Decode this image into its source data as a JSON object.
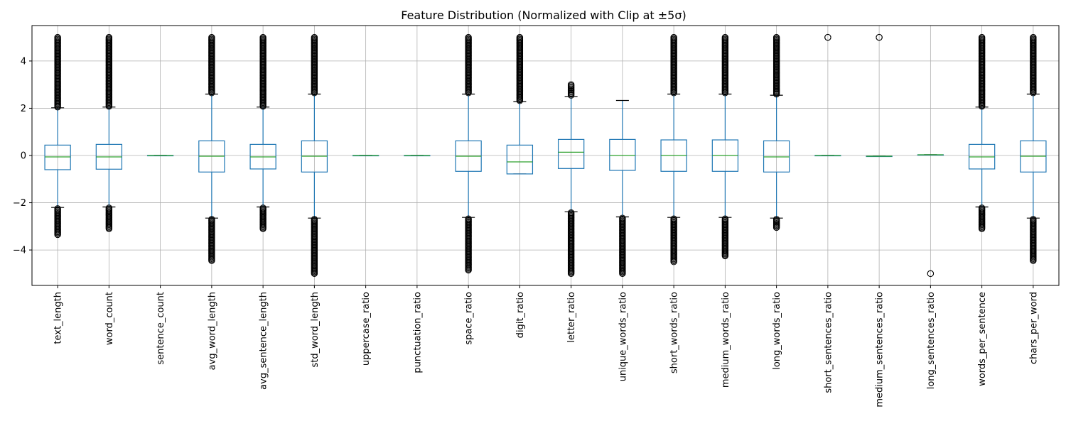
{
  "chart_data": {
    "type": "boxplot",
    "title": "Feature Distribution (Normalized with Clip at ±5σ)",
    "xlabel": "",
    "ylabel": "",
    "ylim": [
      -5.5,
      5.5
    ],
    "yticks": [
      -4,
      -2,
      0,
      2,
      4
    ],
    "grid": true,
    "colors": {
      "box": "#1f77b4",
      "median": "#2ca02c",
      "whisker": "#1f77b4",
      "cap": "#000000",
      "flier": "#000000",
      "grid": "#b0b0b0"
    },
    "categories": [
      "text_length",
      "word_count",
      "sentence_count",
      "avg_word_length",
      "avg_sentence_length",
      "std_word_length",
      "uppercase_ratio",
      "punctuation_ratio",
      "space_ratio",
      "digit_ratio",
      "letter_ratio",
      "unique_words_ratio",
      "short_words_ratio",
      "medium_words_ratio",
      "long_words_ratio",
      "short_sentences_ratio",
      "medium_sentences_ratio",
      "long_sentences_ratio",
      "words_per_sentence",
      "chars_per_word"
    ],
    "boxes": [
      {
        "q1": -0.6,
        "median": -0.06,
        "q3": 0.44,
        "whislo": -2.2,
        "whishi": 2.02,
        "fliers_low_range": [
          -3.35,
          -2.25
        ],
        "fliers_high_range": [
          2.05,
          5.0
        ]
      },
      {
        "q1": -0.58,
        "median": -0.06,
        "q3": 0.47,
        "whislo": -2.18,
        "whishi": 2.05,
        "fliers_low_range": [
          -3.1,
          -2.22
        ],
        "fliers_high_range": [
          2.08,
          5.0
        ]
      },
      {
        "q1": 0.0,
        "median": 0.0,
        "q3": 0.0,
        "whislo": 0.0,
        "whishi": 0.0,
        "fliers_low_range": null,
        "fliers_high_range": null
      },
      {
        "q1": -0.7,
        "median": -0.03,
        "q3": 0.62,
        "whislo": -2.65,
        "whishi": 2.6,
        "fliers_low_range": [
          -4.45,
          -2.7
        ],
        "fliers_high_range": [
          2.65,
          5.0
        ]
      },
      {
        "q1": -0.57,
        "median": -0.06,
        "q3": 0.47,
        "whislo": -2.18,
        "whishi": 2.05,
        "fliers_low_range": [
          -3.1,
          -2.22
        ],
        "fliers_high_range": [
          2.08,
          5.0
        ]
      },
      {
        "q1": -0.7,
        "median": -0.03,
        "q3": 0.62,
        "whislo": -2.65,
        "whishi": 2.6,
        "fliers_low_range": [
          -5.0,
          -2.7
        ],
        "fliers_high_range": [
          2.65,
          5.0
        ]
      },
      {
        "q1": 0.0,
        "median": 0.0,
        "q3": 0.0,
        "whislo": 0.0,
        "whishi": 0.0,
        "fliers_low_range": null,
        "fliers_high_range": null
      },
      {
        "q1": 0.0,
        "median": 0.0,
        "q3": 0.0,
        "whislo": 0.0,
        "whishi": 0.0,
        "fliers_low_range": null,
        "fliers_high_range": null
      },
      {
        "q1": -0.67,
        "median": -0.03,
        "q3": 0.62,
        "whislo": -2.62,
        "whishi": 2.6,
        "fliers_low_range": [
          -4.85,
          -2.68
        ],
        "fliers_high_range": [
          2.65,
          5.0
        ]
      },
      {
        "q1": -0.78,
        "median": -0.27,
        "q3": 0.44,
        "whislo": -0.78,
        "whishi": 2.28,
        "fliers_low_range": null,
        "fliers_high_range": [
          2.32,
          5.0
        ]
      },
      {
        "q1": -0.55,
        "median": 0.14,
        "q3": 0.68,
        "whislo": -2.38,
        "whishi": 2.5,
        "fliers_low_range": [
          -5.0,
          -2.42
        ],
        "fliers_high_range": [
          2.55,
          3.0
        ]
      },
      {
        "q1": -0.63,
        "median": 0.0,
        "q3": 0.68,
        "whislo": -2.6,
        "whishi": 2.33,
        "fliers_low_range": [
          -5.0,
          -2.65
        ],
        "fliers_high_range": null
      },
      {
        "q1": -0.67,
        "median": 0.0,
        "q3": 0.66,
        "whislo": -2.62,
        "whishi": 2.6,
        "fliers_low_range": [
          -4.5,
          -2.68
        ],
        "fliers_high_range": [
          2.65,
          5.0
        ]
      },
      {
        "q1": -0.67,
        "median": 0.0,
        "q3": 0.66,
        "whislo": -2.62,
        "whishi": 2.6,
        "fliers_low_range": [
          -4.25,
          -2.68
        ],
        "fliers_high_range": [
          2.65,
          5.0
        ]
      },
      {
        "q1": -0.7,
        "median": -0.06,
        "q3": 0.62,
        "whislo": -2.65,
        "whishi": 2.55,
        "fliers_low_range": [
          -3.05,
          -2.7
        ],
        "fliers_high_range": [
          2.6,
          5.0
        ]
      },
      {
        "q1": 0.0,
        "median": 0.0,
        "q3": 0.0,
        "whislo": 0.0,
        "whishi": 0.0,
        "fliers_low_range": null,
        "fliers_high_range": [
          5.0,
          5.0
        ]
      },
      {
        "q1": -0.03,
        "median": -0.03,
        "q3": -0.03,
        "whislo": -0.03,
        "whishi": -0.03,
        "fliers_low_range": null,
        "fliers_high_range": [
          5.0,
          5.0
        ]
      },
      {
        "q1": 0.03,
        "median": 0.03,
        "q3": 0.03,
        "whislo": 0.03,
        "whishi": 0.03,
        "fliers_low_range": [
          -5.0,
          -5.0
        ],
        "fliers_high_range": null
      },
      {
        "q1": -0.57,
        "median": -0.06,
        "q3": 0.47,
        "whislo": -2.18,
        "whishi": 2.05,
        "fliers_low_range": [
          -3.1,
          -2.22
        ],
        "fliers_high_range": [
          2.08,
          5.0
        ]
      },
      {
        "q1": -0.7,
        "median": -0.03,
        "q3": 0.62,
        "whislo": -2.65,
        "whishi": 2.6,
        "fliers_low_range": [
          -4.45,
          -2.7
        ],
        "fliers_high_range": [
          2.65,
          5.0
        ]
      }
    ]
  }
}
